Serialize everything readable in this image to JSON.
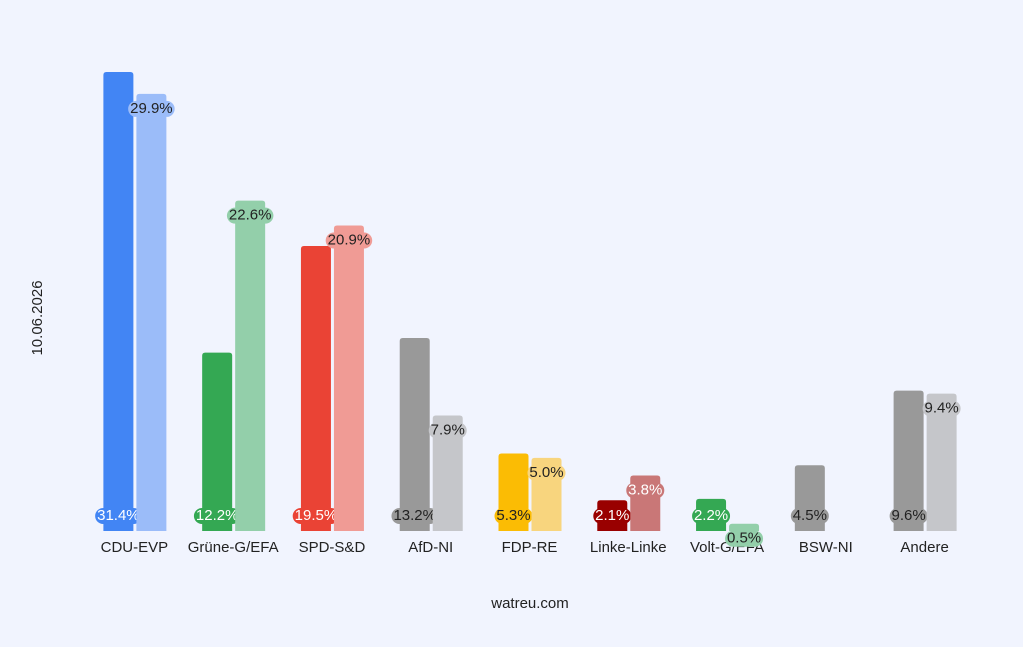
{
  "chart_data": {
    "type": "bar",
    "y_label": "10.06.2026",
    "x_label": "watreu.com",
    "categories": [
      "CDU-EVP",
      "Grüne-G/EFA",
      "SPD-S&D",
      "AfD-NI",
      "FDP-RE",
      "Linke-Linke",
      "Volt-G/EFA",
      "BSW-NI",
      "Andere"
    ],
    "series": [
      {
        "values": [
          31.4,
          12.2,
          19.5,
          13.2,
          5.3,
          2.1,
          2.2,
          4.5,
          9.6
        ],
        "value_labels": [
          "31.4%",
          "12.2%",
          "19.5%",
          "13.2%",
          "5.3%",
          "2.1%",
          "2.2%",
          "4.5%",
          "9.6%"
        ],
        "colors": [
          "#4285f4",
          "#34a853",
          "#ea4335",
          "#999999",
          "#fbbc04",
          "#990000",
          "#34a853",
          "#999999",
          "#999999"
        ]
      },
      {
        "values": [
          29.9,
          22.6,
          20.9,
          7.9,
          5.0,
          3.8,
          0.5,
          null,
          9.4
        ],
        "value_labels": [
          "29.9%",
          "22.6%",
          "20.9%",
          "7.9%",
          "5.0%",
          "3.8%",
          "0.5%",
          null,
          "9.4%"
        ],
        "colors": [
          "#9bbcf9",
          "#93cfaa",
          "#f09b95",
          "#c5c6ca",
          "#f8d57e",
          "#c97777",
          "#93cfaa",
          null,
          "#c5c6ca"
        ]
      }
    ]
  }
}
